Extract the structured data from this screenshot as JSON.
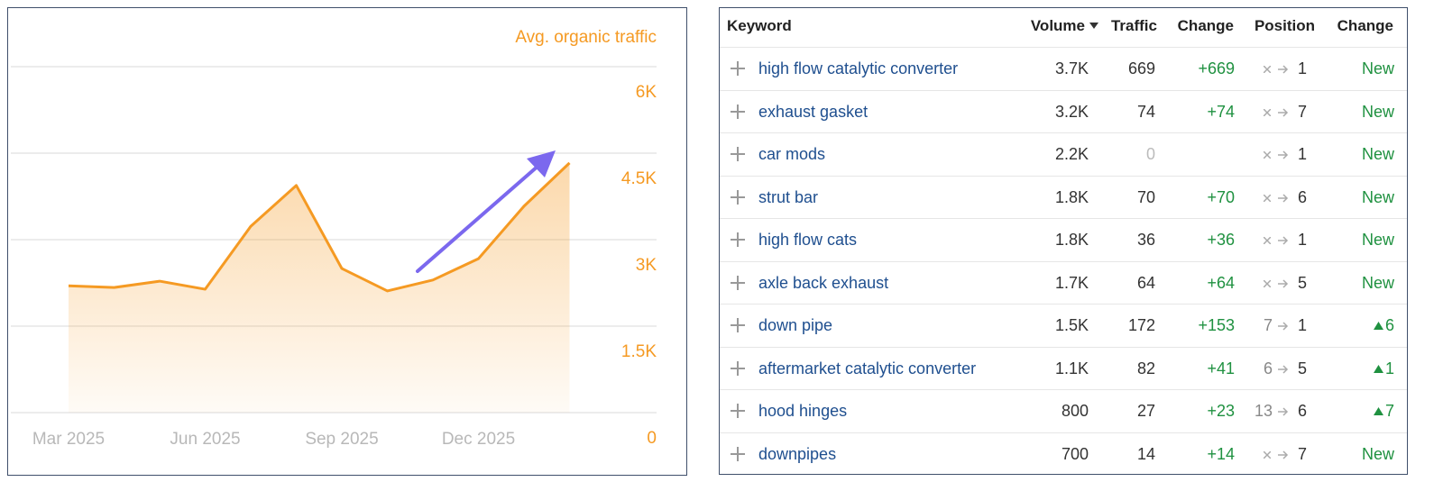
{
  "chart_data": {
    "type": "area",
    "title": "Avg. organic traffic",
    "categories": [
      "Mar 2025",
      null,
      null,
      "Jun 2025",
      null,
      null,
      "Sep 2025",
      null,
      null,
      "Dec 2025",
      null,
      null
    ],
    "series": [
      {
        "name": "Avg. organic traffic",
        "color": "#f59a23",
        "values": [
          2200,
          2170,
          2280,
          2140,
          3230,
          3940,
          2500,
          2110,
          2300,
          2670,
          3580,
          4330
        ]
      }
    ],
    "ylim": [
      0,
      6000
    ],
    "yticks": [
      0,
      {
        "value": 1500,
        "label": "1.5K"
      },
      {
        "value": 3000,
        "label": "3K"
      },
      {
        "value": 4500,
        "label": "4.5K"
      },
      {
        "value": 6000,
        "label": "6K"
      }
    ],
    "grid": true
  },
  "table": {
    "headers": [
      "Keyword",
      "Volume",
      "Traffic",
      "Change",
      "Position",
      "Change"
    ],
    "rows": [
      {
        "keyword": "high flow catalytic converter",
        "volume": "3.7K",
        "traffic": 669,
        "change": "+669",
        "from": null,
        "to": 1,
        "position_change": "New"
      },
      {
        "keyword": "exhaust gasket",
        "volume": "3.2K",
        "traffic": 74,
        "change": "+74",
        "from": null,
        "to": 7,
        "position_change": "New"
      },
      {
        "keyword": "car mods",
        "volume": "2.2K",
        "traffic": 0,
        "change": null,
        "from": null,
        "to": 1,
        "position_change": "New"
      },
      {
        "keyword": "strut bar",
        "volume": "1.8K",
        "traffic": 70,
        "change": "+70",
        "from": null,
        "to": 6,
        "position_change": "New"
      },
      {
        "keyword": "high flow cats",
        "volume": "1.8K",
        "traffic": 36,
        "change": "+36",
        "from": null,
        "to": 1,
        "position_change": "New"
      },
      {
        "keyword": "axle back exhaust",
        "volume": "1.7K",
        "traffic": 64,
        "change": "+64",
        "from": null,
        "to": 5,
        "position_change": "New"
      },
      {
        "keyword": "down pipe",
        "volume": "1.5K",
        "traffic": 172,
        "change": "+153",
        "from": 7,
        "to": 1,
        "position_change": 6
      },
      {
        "keyword": "aftermarket catalytic converter",
        "volume": "1.1K",
        "traffic": 82,
        "change": "+41",
        "from": 6,
        "to": 5,
        "position_change": 1
      },
      {
        "keyword": "hood hinges",
        "volume": "800",
        "traffic": 27,
        "change": "+23",
        "from": 13,
        "to": 6,
        "position_change": 7
      },
      {
        "keyword": "downpipes",
        "volume": "700",
        "traffic": 14,
        "change": "+14",
        "from": null,
        "to": 7,
        "position_change": "New"
      }
    ]
  }
}
